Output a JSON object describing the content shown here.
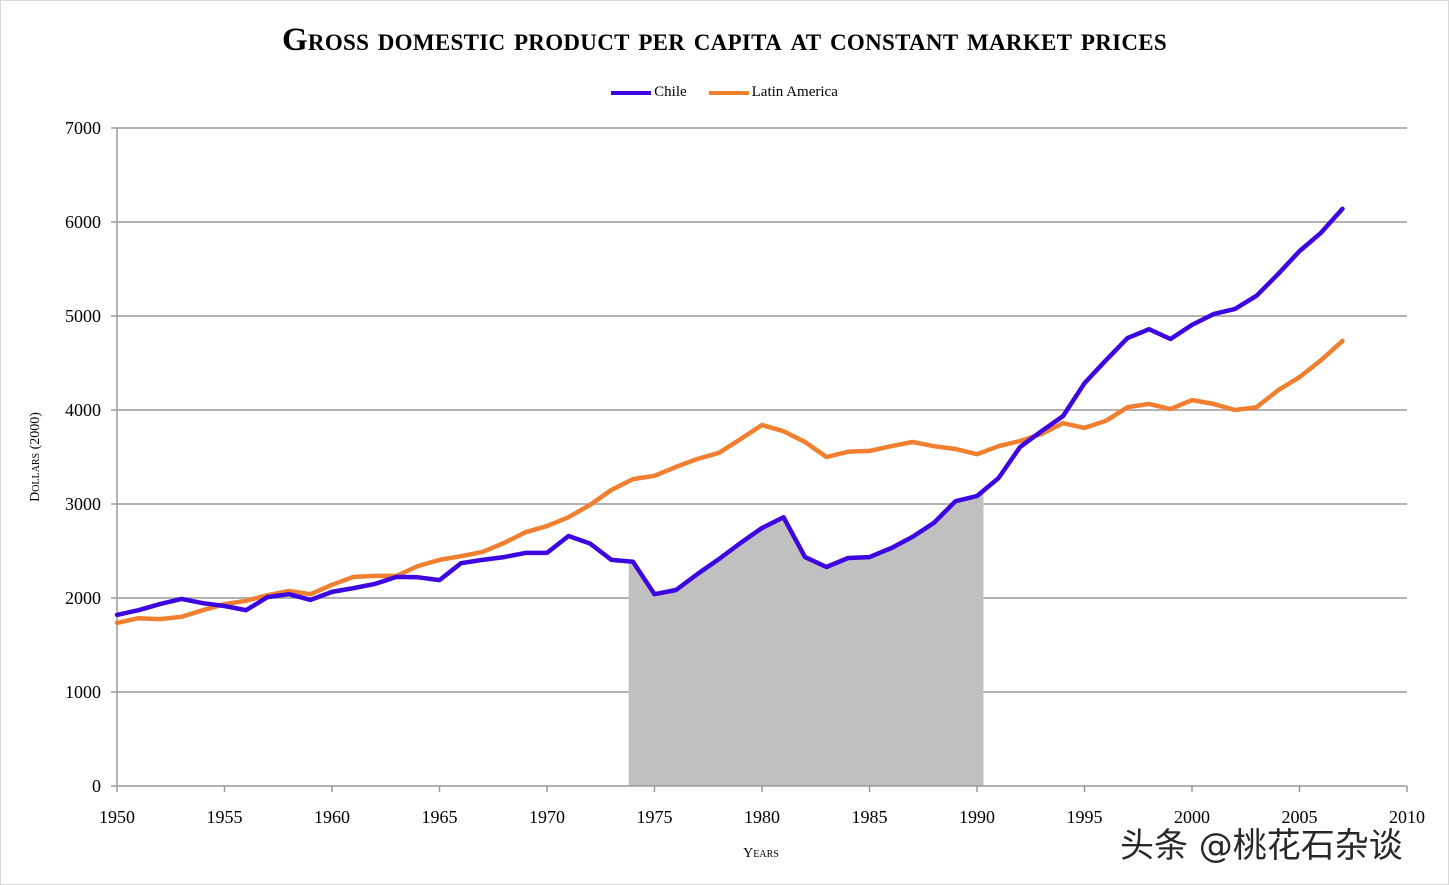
{
  "chart_data": {
    "type": "line",
    "title": "Gross domestic product per capita at constant market prices",
    "xlabel": "Years",
    "ylabel": "Dollars (2000)",
    "xlim": [
      1950,
      2010
    ],
    "ylim": [
      0,
      7000
    ],
    "x_ticks": [
      1950,
      1955,
      1960,
      1965,
      1970,
      1975,
      1980,
      1985,
      1990,
      1995,
      2000,
      2005,
      2010
    ],
    "y_ticks": [
      0,
      1000,
      2000,
      3000,
      4000,
      5000,
      6000,
      7000
    ],
    "grid": "horizontal",
    "legend_position": "top-center",
    "x": [
      1950,
      1951,
      1952,
      1953,
      1954,
      1955,
      1956,
      1957,
      1958,
      1959,
      1960,
      1961,
      1962,
      1963,
      1964,
      1965,
      1966,
      1967,
      1968,
      1969,
      1970,
      1971,
      1972,
      1973,
      1974,
      1975,
      1976,
      1977,
      1978,
      1979,
      1980,
      1981,
      1982,
      1983,
      1984,
      1985,
      1986,
      1987,
      1988,
      1989,
      1990,
      1991,
      1992,
      1993,
      1994,
      1995,
      1996,
      1997,
      1998,
      1999,
      2000,
      2001,
      2002,
      2003,
      2004,
      2005,
      2006,
      2007
    ],
    "series": [
      {
        "name": "Chile",
        "color": "#3d06e0",
        "values": [
          1820,
          1870,
          1935,
          1990,
          1945,
          1915,
          1870,
          2010,
          2040,
          1980,
          2065,
          2105,
          2150,
          2225,
          2220,
          2190,
          2370,
          2405,
          2435,
          2480,
          2480,
          2660,
          2580,
          2405,
          2385,
          2040,
          2085,
          2255,
          2415,
          2585,
          2745,
          2860,
          2435,
          2330,
          2425,
          2435,
          2530,
          2650,
          2800,
          3030,
          3085,
          3275,
          3605,
          3775,
          3935,
          4285,
          4530,
          4765,
          4860,
          4755,
          4905,
          5020,
          5075,
          5215,
          5445,
          5690,
          5885,
          6140
        ]
      },
      {
        "name": "Latin America",
        "color": "#f08030",
        "values": [
          1735,
          1785,
          1775,
          1800,
          1870,
          1935,
          1970,
          2030,
          2075,
          2040,
          2140,
          2225,
          2235,
          2235,
          2340,
          2405,
          2445,
          2490,
          2585,
          2700,
          2765,
          2860,
          2990,
          3150,
          3265,
          3300,
          3395,
          3480,
          3545,
          3690,
          3840,
          3775,
          3660,
          3500,
          3555,
          3565,
          3615,
          3660,
          3615,
          3585,
          3530,
          3615,
          3670,
          3745,
          3860,
          3810,
          3885,
          4030,
          4065,
          4010,
          4105,
          4065,
          4000,
          4030,
          4210,
          4350,
          4530,
          4735
        ]
      }
    ],
    "shaded_region": {
      "label": "Chile area under curve (shaded)",
      "x_start": 1973.8,
      "x_end": 1990.3,
      "color": "#c0c0c0"
    }
  },
  "watermark": "头条 @桃花石杂谈"
}
